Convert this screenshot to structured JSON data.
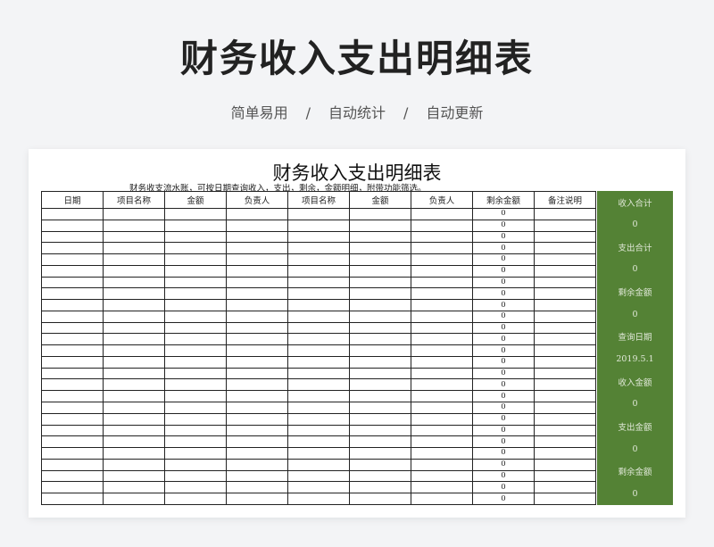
{
  "hero": {
    "title": "财务收入支出明细表",
    "tags": [
      "简单易用",
      "自动统计",
      "自动更新"
    ],
    "separator": "/"
  },
  "sheet": {
    "title": "财务收入支出明细表",
    "description": "财务收支流水账，可按日期查询收入，支出，剩余，金额明细，附带功能筛选。",
    "columns": [
      "日期",
      "项目名称",
      "金额",
      "负责人",
      "项目名称",
      "金额",
      "负责人",
      "剩余金额",
      "备注说明"
    ],
    "remaining_values": [
      "0",
      "0",
      "0",
      "0",
      "0",
      "0",
      "0",
      "0",
      "0",
      "0",
      "0",
      "0",
      "0",
      "0",
      "0",
      "0",
      "0",
      "0",
      "0",
      "0",
      "0",
      "0",
      "0",
      "0",
      "0",
      "0"
    ]
  },
  "summary": {
    "accent_color": "#548235",
    "items": [
      {
        "label": "收入合计",
        "value": "0"
      },
      {
        "label": "支出合计",
        "value": "0"
      },
      {
        "label": "剩余金额",
        "value": "0"
      },
      {
        "label": "查询日期",
        "value": "2019.5.1"
      },
      {
        "label": "收入金额",
        "value": "0"
      },
      {
        "label": "支出金额",
        "value": "0"
      },
      {
        "label": "剩余金额",
        "value": "0"
      }
    ]
  }
}
